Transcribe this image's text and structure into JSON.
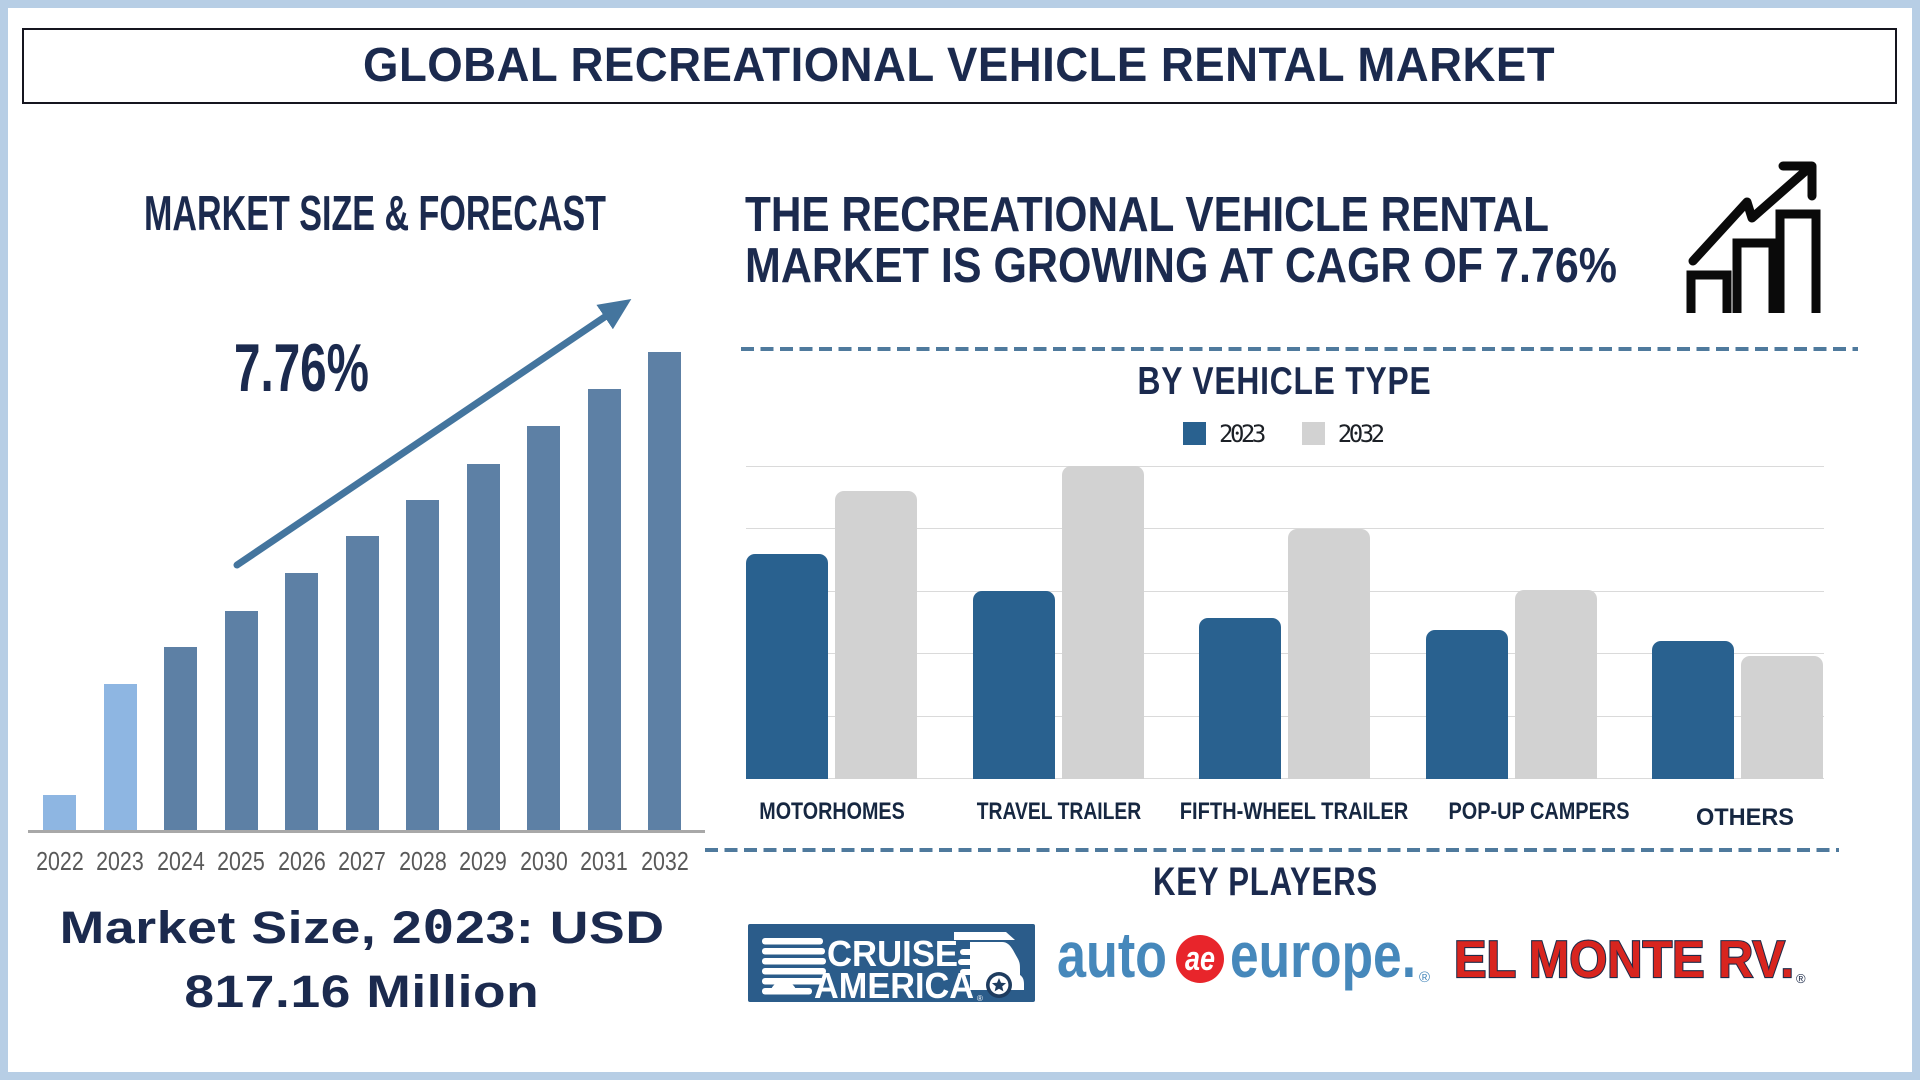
{
  "header": {
    "title": "GLOBAL RECREATIONAL VEHICLE RENTAL MARKET"
  },
  "forecast": {
    "heading": "MARKET SIZE & FORECAST",
    "cagr_label": "7.76%",
    "caption_line1": "Market Size, 2023: USD",
    "caption_line2": "817.16 Million"
  },
  "banner": {
    "line1": "THE RECREATIONAL VEHICLE RENTAL",
    "line2": "MARKET IS GROWING AT CAGR OF 7.76%",
    "icon": "growth-chart-icon"
  },
  "vehicle_type": {
    "heading": "BY VEHICLE TYPE"
  },
  "key_players": {
    "heading": "KEY PLAYERS",
    "logos": {
      "cruise_america": {
        "line1": "CRUISE",
        "line2": "AMERICA",
        "reg": "®"
      },
      "auto_europe": {
        "word1": "auto",
        "monogram": "ae",
        "word2": "europe.",
        "reg": "®"
      },
      "el_monte": {
        "text": "EL MONTE RV.",
        "reg": "®"
      }
    }
  },
  "colors": {
    "navy": "#1b2a4e",
    "frame": "#b7cee5",
    "forecast_bar": "#5d80a5",
    "forecast_bar_highlight": "#8eb6e2",
    "arrow": "#44759e",
    "dashed_divider": "#4f7a9d",
    "axis_gray": "#a8a8a8",
    "year_gray": "#595959",
    "series_2023_blue": "#29618f",
    "series_2032_gray": "#d2d2d2",
    "gridline": "#dadada",
    "cruise_blue": "#2b5d8b",
    "autoeurope_blue": "#4688bb",
    "autoeurope_red": "#e8252b",
    "elmonte_red": "#d8251f"
  },
  "chart_data": [
    {
      "type": "bar",
      "title": "MARKET SIZE & FORECAST",
      "xlabel": "",
      "ylabel": "",
      "y_axis_shown": false,
      "note": "stylized growth bars, heights in relative pixels",
      "categories": [
        "2022",
        "2023",
        "2024",
        "2025",
        "2026",
        "2027",
        "2028",
        "2029",
        "2030",
        "2031",
        "2032"
      ],
      "values": [
        35,
        146,
        183,
        219,
        257,
        294,
        330,
        366,
        404,
        441,
        478
      ],
      "highlight_categories": [
        "2022",
        "2023"
      ],
      "annotation": {
        "text": "7.76%",
        "shape": "up-arrow"
      },
      "known_point": "Market Size 2023: USD 817.16 Million"
    },
    {
      "type": "bar",
      "title": "BY VEHICLE TYPE",
      "xlabel": "",
      "ylabel": "",
      "y_tick_labels_shown": false,
      "ylim": [
        0,
        5
      ],
      "grid": true,
      "legend_position": "top",
      "categories": [
        "MOTORHOMES",
        "TRAVEL TRAILER",
        "FIFTH-WHEEL TRAILER",
        "POP-UP CAMPERS",
        "OTHERS"
      ],
      "series": [
        {
          "name": "2023",
          "values": [
            3.6,
            3.0,
            2.58,
            2.38,
            2.2
          ]
        },
        {
          "name": "2032",
          "values": [
            4.6,
            5.0,
            4.0,
            3.02,
            1.96
          ]
        }
      ]
    }
  ]
}
